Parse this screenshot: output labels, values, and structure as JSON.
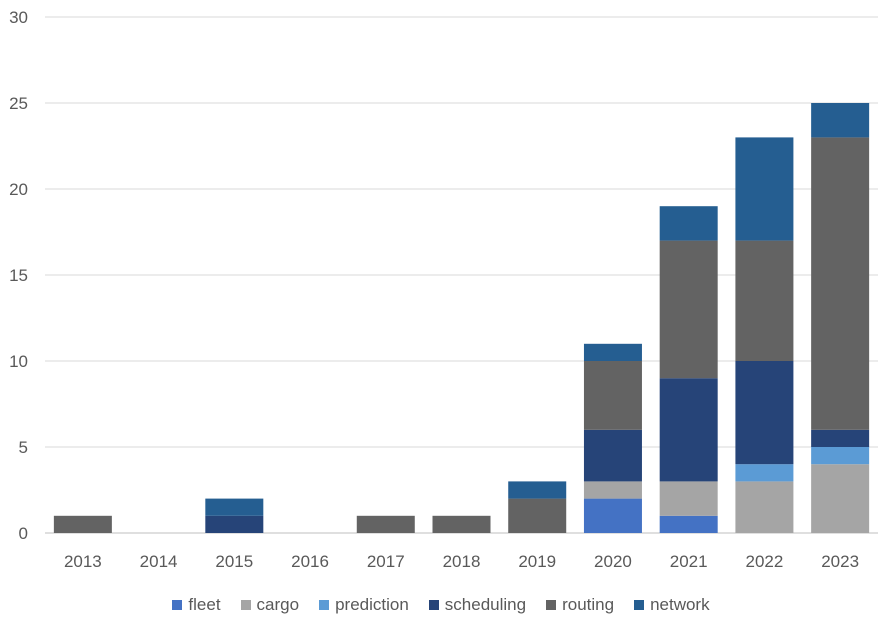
{
  "chart_data": {
    "type": "bar",
    "stacked": true,
    "title": "",
    "xlabel": "",
    "ylabel": "",
    "ylim": [
      0,
      30
    ],
    "yticks": [
      0,
      5,
      10,
      15,
      20,
      25,
      30
    ],
    "grid": true,
    "legend_position": "bottom",
    "categories": [
      "2013",
      "2014",
      "2015",
      "2016",
      "2017",
      "2018",
      "2019",
      "2020",
      "2021",
      "2022",
      "2023"
    ],
    "series": [
      {
        "name": "fleet",
        "color": "#4472C4",
        "values": [
          0,
          0,
          0,
          0,
          0,
          0,
          0,
          2,
          1,
          0,
          0
        ]
      },
      {
        "name": "cargo",
        "color": "#A5A5A5",
        "values": [
          0,
          0,
          0,
          0,
          0,
          0,
          0,
          1,
          2,
          3,
          4
        ]
      },
      {
        "name": "prediction",
        "color": "#5B9BD5",
        "values": [
          0,
          0,
          0,
          0,
          0,
          0,
          0,
          0,
          0,
          1,
          1
        ]
      },
      {
        "name": "scheduling",
        "color": "#264478",
        "values": [
          0,
          0,
          1,
          0,
          0,
          0,
          0,
          3,
          6,
          6,
          1
        ]
      },
      {
        "name": "routing",
        "color": "#636363",
        "values": [
          1,
          0,
          0,
          0,
          1,
          1,
          2,
          4,
          8,
          7,
          17
        ]
      },
      {
        "name": "network",
        "color": "#255E91",
        "values": [
          0,
          0,
          1,
          0,
          0,
          0,
          1,
          1,
          2,
          6,
          2
        ]
      }
    ]
  }
}
